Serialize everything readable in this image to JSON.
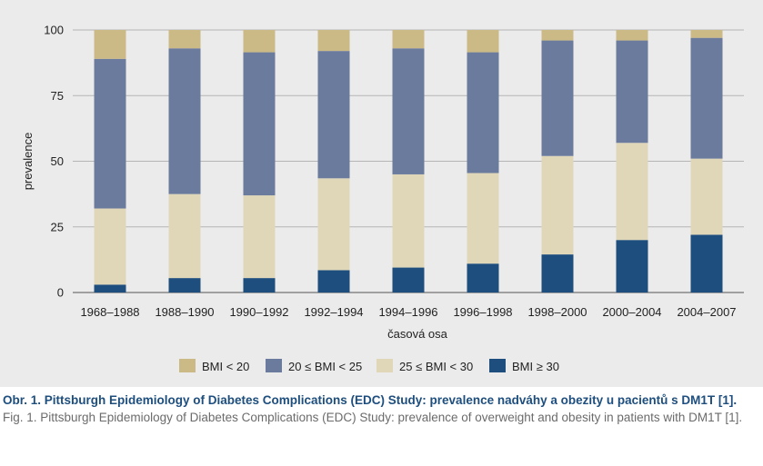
{
  "chart_data": {
    "type": "bar",
    "stacked": true,
    "categories": [
      "1968–1988",
      "1988–1990",
      "1990–1992",
      "1992–1994",
      "1994–1996",
      "1996–1998",
      "1998–2000",
      "2000–2004",
      "2004–2007"
    ],
    "series": [
      {
        "name": "BMI ≥ 30",
        "color": "#1d4e7e",
        "values": [
          3,
          5.5,
          5.5,
          8.5,
          9.5,
          11,
          14.5,
          20,
          22
        ]
      },
      {
        "name": "25 ≤ BMI < 30",
        "color": "#e0d7b9",
        "values": [
          29,
          32,
          31.5,
          35,
          35.5,
          34.5,
          37.5,
          37,
          29
        ]
      },
      {
        "name": "20 ≤ BMI < 25",
        "color": "#6b7b9e",
        "values": [
          57,
          55.5,
          54.5,
          48.5,
          48,
          46,
          44,
          39,
          46
        ]
      },
      {
        "name": "BMI < 20",
        "color": "#cbb986",
        "values": [
          11,
          7,
          8.5,
          8,
          7,
          8.5,
          4,
          4,
          3
        ]
      }
    ],
    "legend_order": [
      "BMI < 20",
      "20 ≤ BMI < 25",
      "25 ≤ BMI < 30",
      "BMI ≥ 30"
    ],
    "xlabel": "časová osa",
    "ylabel": "prevalence",
    "ylim": [
      0,
      100
    ],
    "yticks": [
      0,
      25,
      50,
      75,
      100
    ],
    "grid": true,
    "legend_position": "bottom"
  },
  "caption": {
    "cz": "Obr. 1. Pittsburgh Epidemiology of Diabetes Complications (EDC) Study: prevalence nadváhy a obezity u pacientů s DM1T [1].",
    "en": "Fig. 1. Pittsburgh Epidemiology of Diabetes Complications (EDC) Study: prevalence of overweight and obesity in patients with DM1T [1]."
  }
}
